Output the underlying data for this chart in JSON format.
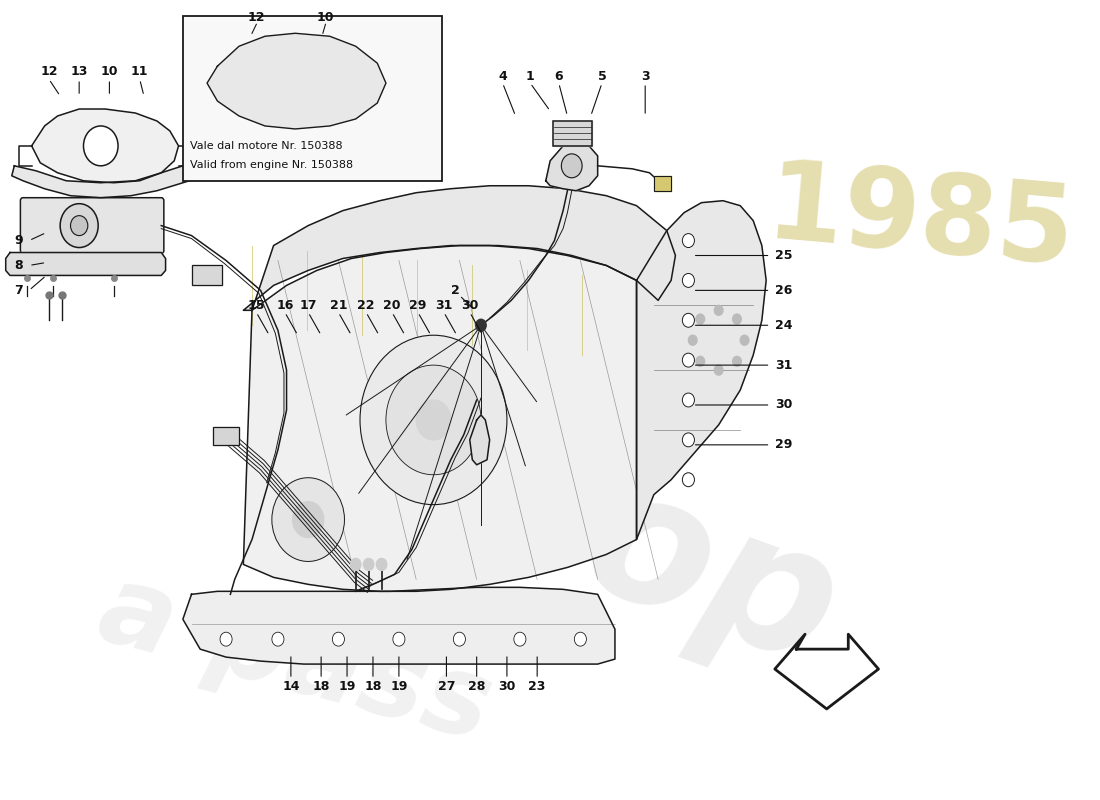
{
  "bg_color": "#ffffff",
  "line_color": "#1a1a1a",
  "fill_light": "#f2f2f2",
  "fill_mid": "#e0e0e0",
  "fill_dark": "#cccccc",
  "yellow_line": "#c8b84a",
  "watermark_gray": "#d8d8d8",
  "watermark_yellow": "#d4c87a",
  "inset_text_line1": "Vale dal motore Nr. 150388",
  "inset_text_line2": "Valid from engine Nr. 150388",
  "label_fontsize": 9,
  "label_fontsize_bold": true
}
